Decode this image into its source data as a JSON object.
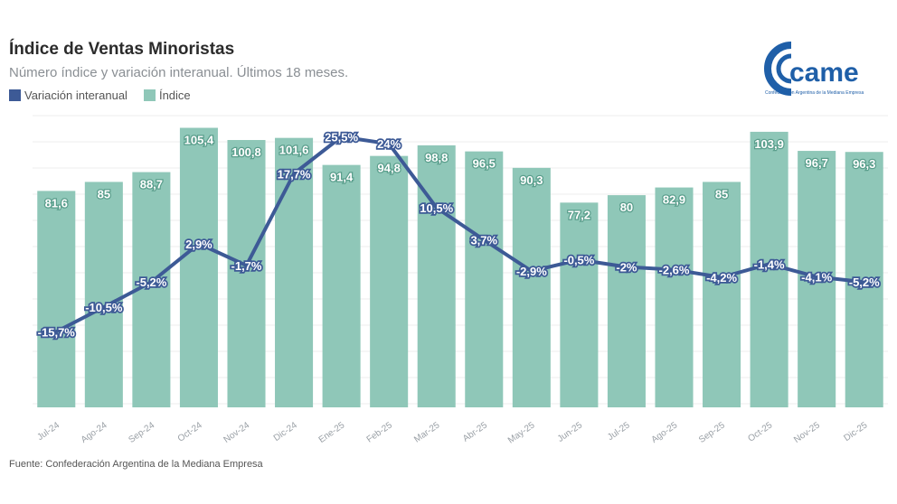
{
  "header": {
    "title": "Índice de Ventas Minoristas",
    "subtitle": "Número índice y variación interanual. Últimos 18 meses."
  },
  "legend": [
    {
      "label": "Variación interanual",
      "color": "#3d5a96"
    },
    {
      "label": "Índice",
      "color": "#8fc7b8"
    }
  ],
  "logo": {
    "text": "came",
    "tagline": "Confederación Argentina de la Mediana Empresa",
    "color": "#1f5fa8"
  },
  "source": "Fuente: Confederación Argentina de la Mediana Empresa",
  "chart_data": {
    "type": "bar",
    "title": "Índice de Ventas Minoristas",
    "subtitle": "Número índice y variación interanual. Últimos 18 meses.",
    "xlabel": "",
    "ylabel": "",
    "categories": [
      "Jul-24",
      "Ago-24",
      "Sep-24",
      "Oct-24",
      "Nov-24",
      "Dic-24",
      "Ene-25",
      "Feb-25",
      "Mar-25",
      "Abr-25",
      "May-25",
      "Jun-25",
      "Jul-25",
      "Ago-25",
      "Sep-25",
      "Oct-25",
      "Nov-25",
      "Dic-25"
    ],
    "series": [
      {
        "name": "Índice",
        "type": "bar",
        "color": "#8fc7b8",
        "values": [
          81.6,
          85,
          88.7,
          105.4,
          100.8,
          101.6,
          91.4,
          94.8,
          98.8,
          96.5,
          90.3,
          77.2,
          80,
          82.9,
          85,
          103.9,
          96.7,
          96.3
        ],
        "labels": [
          "81,6",
          "85",
          "88,7",
          "105,4",
          "100,8",
          "101,6",
          "91,4",
          "94,8",
          "98,8",
          "96,5",
          "90,3",
          "77,2",
          "80",
          "82,9",
          "85",
          "103,9",
          "96,7",
          "96,3"
        ]
      },
      {
        "name": "Variación interanual",
        "type": "line",
        "color": "#3d5a96",
        "values": [
          -15.7,
          -10.5,
          -5.2,
          2.9,
          -1.7,
          17.7,
          25.5,
          24,
          10.5,
          3.7,
          -2.9,
          -0.5,
          -2,
          -2.6,
          -4.2,
          -1.4,
          -4.1,
          -5.2
        ],
        "labels": [
          "-15,7%",
          "-10,5%",
          "-5,2%",
          "2,9%",
          "-1,7%",
          "17,7%",
          "25,5%",
          "24%",
          "10,5%",
          "3,7%",
          "-2,9%",
          "-0,5%",
          "-2%",
          "-2,6%",
          "-4,2%",
          "-1,4%",
          "-4,1%",
          "-5,2%"
        ]
      }
    ],
    "ylim_bars": [
      0,
      110
    ],
    "ylim_line": [
      -31,
      31
    ],
    "grid": true,
    "legend_position": "top-left"
  }
}
